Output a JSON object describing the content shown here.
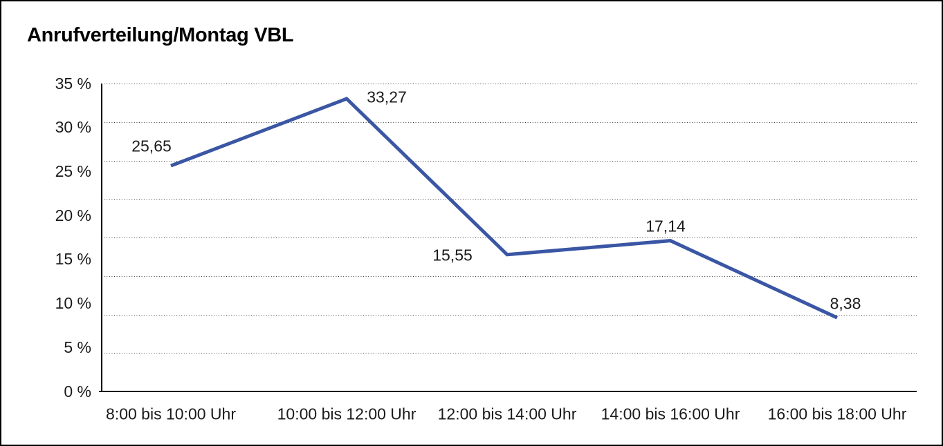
{
  "colors": {
    "line": "#3A56A4",
    "grid_dots": "#3d3d3d",
    "axis": "#000000",
    "text": "#1a1a1a",
    "title_text": "#000000",
    "background": "#ffffff",
    "border": "#000000"
  },
  "chart_data": {
    "type": "line",
    "title": "Anrufverteilung/Montag VBL",
    "categories": [
      "8:00 bis 10:00 Uhr",
      "10:00 bis 12:00 Uhr",
      "12:00 bis 14:00 Uhr",
      "14:00 bis 16:00 Uhr",
      "16:00 bis 18:00 Uhr"
    ],
    "series": [
      {
        "values": [
          25.65,
          33.27,
          15.55,
          17.14,
          8.38
        ],
        "value_labels": [
          "25,65",
          "33,27",
          "15,55",
          "17,14",
          "8,38"
        ]
      }
    ],
    "y_ticks": [
      "35 %",
      "30 %",
      "25 %",
      "20 %",
      "15 %",
      "10 %",
      "5 %",
      "0 %"
    ],
    "ylim": [
      0,
      35
    ],
    "xlabel": "",
    "ylabel": "",
    "grid": "horizontal-dotted",
    "legend_position": "none"
  }
}
